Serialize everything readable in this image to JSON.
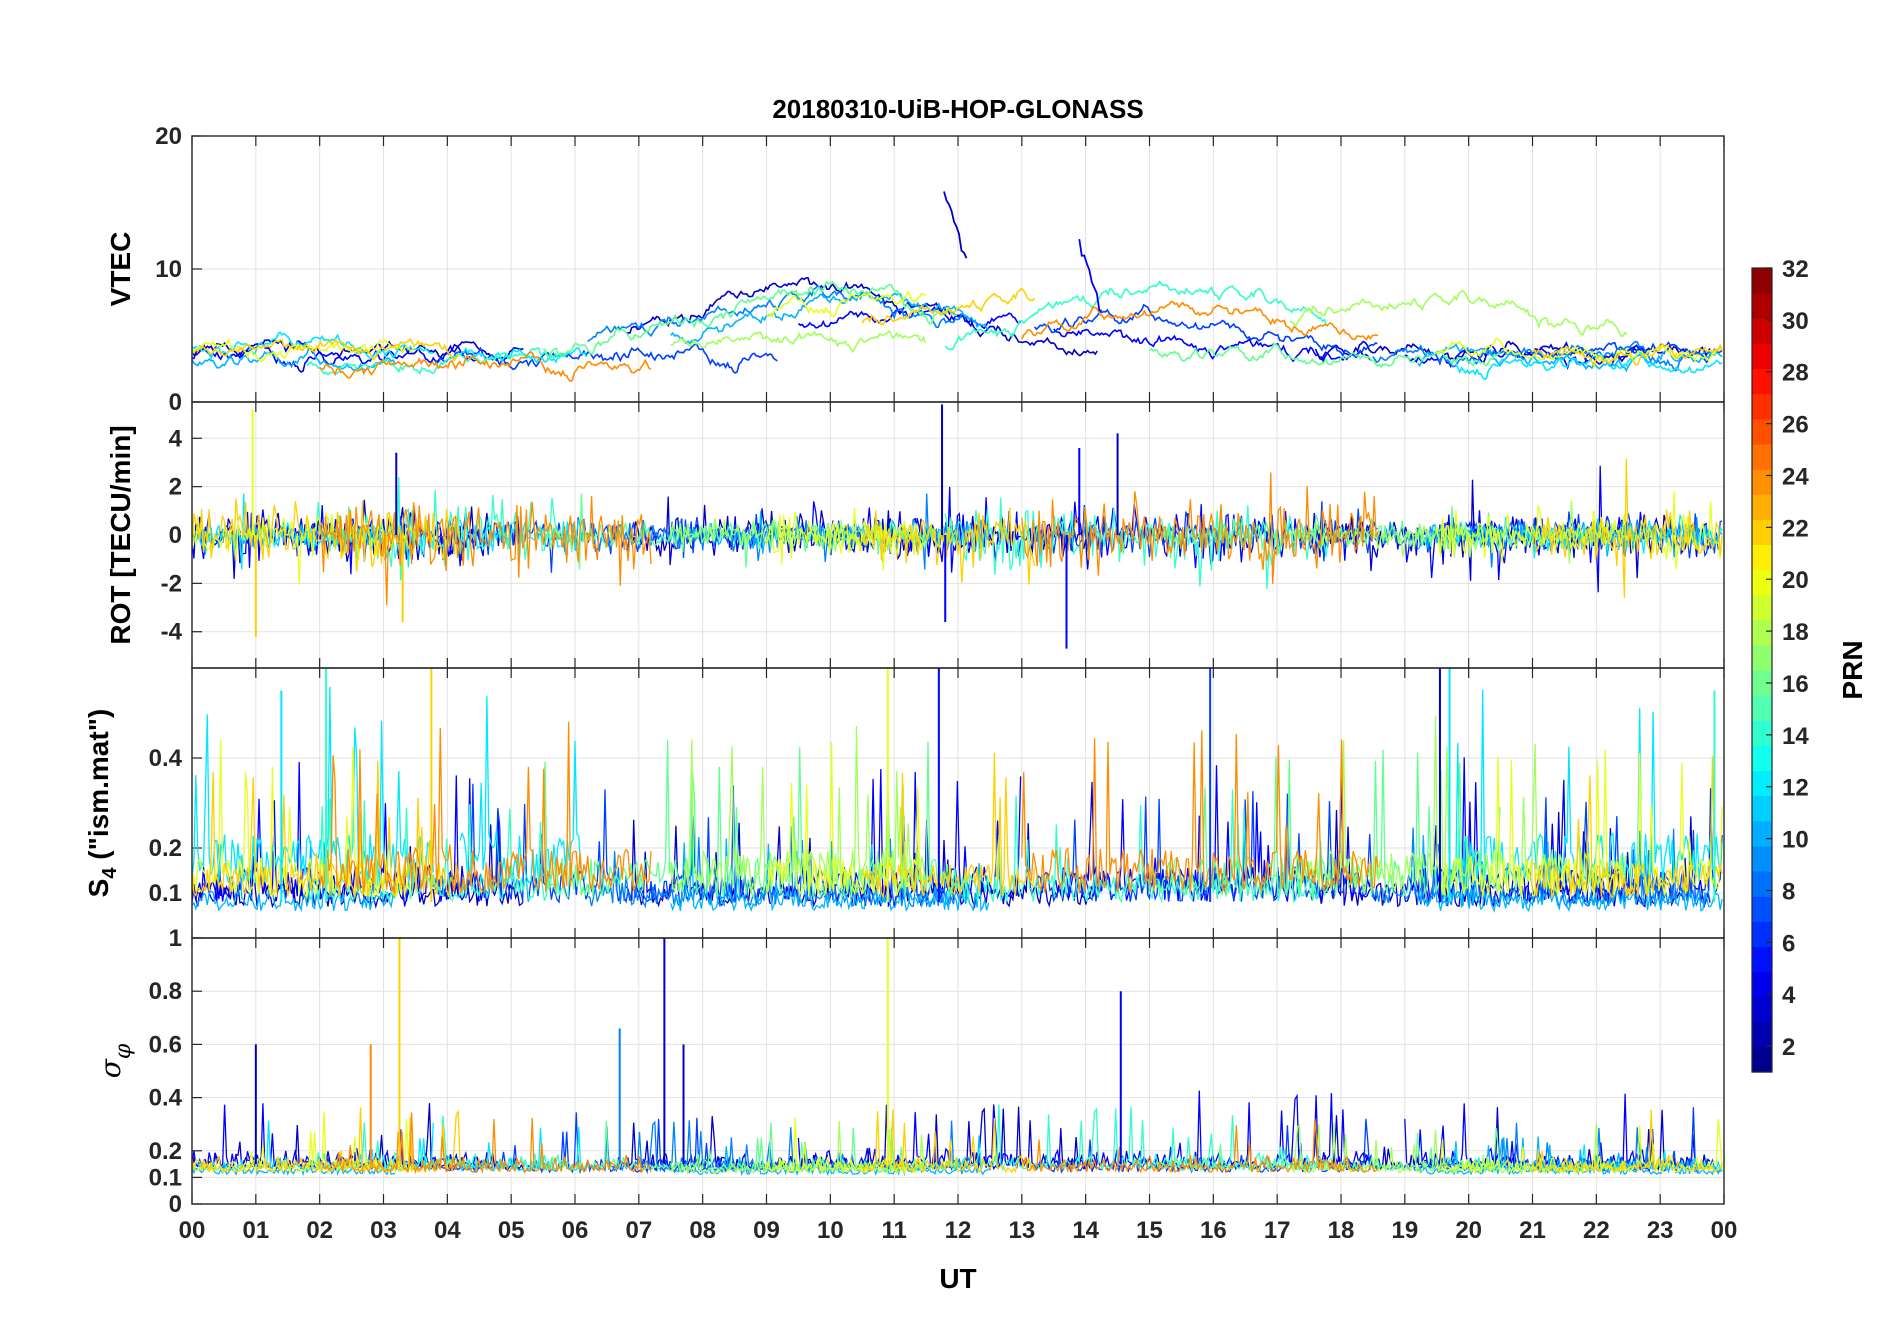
{
  "chart_data": {
    "type": "line",
    "title": "20180310-UiB-HOP-GLONASS",
    "xlabel": "UT",
    "x_ticks": [
      "00",
      "01",
      "02",
      "03",
      "04",
      "05",
      "06",
      "07",
      "08",
      "09",
      "10",
      "11",
      "12",
      "13",
      "14",
      "15",
      "16",
      "17",
      "18",
      "19",
      "20",
      "21",
      "22",
      "23",
      "00"
    ],
    "xlim_hours": [
      0,
      24
    ],
    "grid": true,
    "panels": [
      {
        "id": "vtec",
        "ylabel": "VTEC",
        "ylim": [
          0,
          20
        ],
        "yticks": [
          0,
          10,
          20
        ],
        "ytick_labels": [
          "0",
          "10",
          "20"
        ],
        "description": "Vertical TEC per satellite, mostly 2-9 TECU with peaks up to ~16 near 11.8 UT"
      },
      {
        "id": "rot",
        "ylabel": "ROT [TECU/min]",
        "ylim": [
          -5.5,
          5.5
        ],
        "yticks": [
          -4,
          -2,
          0,
          2,
          4
        ],
        "ytick_labels": [
          "-4",
          "-2",
          "0",
          "2",
          "4"
        ],
        "description": "Rate of TEC, fluctuations mostly within +/-2, spikes to +/-5"
      },
      {
        "id": "s4",
        "ylabel_main": "S",
        "ylabel_sub": "4",
        "ylabel_rest": " (\"ism.mat\")",
        "ylim": [
          0,
          0.6
        ],
        "yticks": [
          0.1,
          0.2,
          0.4
        ],
        "ytick_labels": [
          "0.1",
          "0.2",
          "0.4"
        ],
        "description": "Amplitude scintillation index, background ~0.05-0.1, bursts to 0.6"
      },
      {
        "id": "sigma",
        "ylabel_main": "σ",
        "ylabel_sub": "φ",
        "ylim": [
          0,
          1
        ],
        "yticks": [
          0,
          0.1,
          0.2,
          0.4,
          0.6,
          0.8,
          1
        ],
        "ytick_labels": [
          "0",
          "0.1",
          "0.2",
          "0.4",
          "0.6",
          "0.8",
          "1"
        ],
        "description": "Phase scintillation index, background ~0.1-0.2, spikes to 1"
      }
    ],
    "colorbar": {
      "label": "PRN",
      "range": [
        1,
        32
      ],
      "ticks": [
        2,
        4,
        6,
        8,
        10,
        12,
        14,
        16,
        18,
        20,
        22,
        24,
        26,
        28,
        30,
        32
      ],
      "tick_labels": [
        "2",
        "4",
        "6",
        "8",
        "10",
        "12",
        "14",
        "16",
        "18",
        "20",
        "22",
        "24",
        "26",
        "28",
        "30",
        "32"
      ],
      "colormap": "jet"
    },
    "series": [
      {
        "name": "PRN 2",
        "prn": 2,
        "color": "#0000c8",
        "intervals": [
          [
            0,
            5.2
          ],
          [
            6.8,
            14.2
          ],
          [
            17.6,
            23.8
          ]
        ],
        "vtec_base": 3.8,
        "vtec_peak": 8.3,
        "vtec_peak_at": 9.5,
        "rot_amp": 0.8,
        "s4_base": 0.07,
        "s4_amp": 0.12,
        "sigma_base": 0.16,
        "sigma_amp": 0.05
      },
      {
        "name": "PRN 4",
        "prn": 4,
        "color": "#0000ff",
        "intervals": [
          [
            0,
            4.5
          ],
          [
            9.5,
            13.0
          ],
          [
            13.5,
            18.5
          ],
          [
            19.0,
            22.8
          ]
        ],
        "vtec_base": 3.5,
        "vtec_peak": 7.0,
        "vtec_peak_at": 11.2,
        "rot_amp": 1.0,
        "s4_base": 0.08,
        "s4_amp": 0.18,
        "sigma_base": 0.17,
        "sigma_amp": 0.06
      },
      {
        "name": "PRN 6",
        "prn": 6,
        "color": "#0040ff",
        "intervals": [
          [
            3.8,
            9.2
          ],
          [
            13.2,
            18.6
          ],
          [
            21.0,
            24.0
          ]
        ],
        "vtec_base": 3.4,
        "vtec_peak": 6.5,
        "vtec_peak_at": 15.0,
        "rot_amp": 0.7,
        "s4_base": 0.08,
        "s4_amp": 0.15,
        "sigma_base": 0.15,
        "sigma_amp": 0.05
      },
      {
        "name": "PRN 8",
        "prn": 8,
        "color": "#0080ff",
        "intervals": [
          [
            6.2,
            12.2
          ],
          [
            18.5,
            23.8
          ]
        ],
        "vtec_base": 3.6,
        "vtec_peak": 8.0,
        "vtec_peak_at": 9.8,
        "rot_amp": 0.6,
        "s4_base": 0.07,
        "s4_amp": 0.1,
        "sigma_base": 0.15,
        "sigma_amp": 0.04
      },
      {
        "name": "PRN 10",
        "prn": 10,
        "color": "#00b4ff",
        "intervals": [
          [
            0,
            3.2
          ],
          [
            7.5,
            12.5
          ],
          [
            19.2,
            24.0
          ]
        ],
        "vtec_base": 3.2,
        "vtec_peak": 7.5,
        "vtec_peak_at": 10.2,
        "rot_amp": 0.5,
        "s4_base": 0.06,
        "s4_amp": 0.1,
        "sigma_base": 0.13,
        "sigma_amp": 0.03
      },
      {
        "name": "PRN 12",
        "prn": 12,
        "color": "#00e8ff",
        "intervals": [
          [
            0,
            3.8
          ],
          [
            4.2,
            6.2
          ],
          [
            19.8,
            24.0
          ]
        ],
        "vtec_base": 3.0,
        "vtec_peak": 4.5,
        "vtec_peak_at": 1.5,
        "rot_amp": 0.6,
        "s4_base": 0.12,
        "s4_amp": 0.25,
        "sigma_base": 0.15,
        "sigma_amp": 0.04
      },
      {
        "name": "PRN 14",
        "prn": 14,
        "color": "#30ffc8",
        "intervals": [
          [
            1.8,
            5.8
          ],
          [
            11.8,
            17.8
          ]
        ],
        "vtec_base": 3.0,
        "vtec_peak": 8.8,
        "vtec_peak_at": 15.5,
        "rot_amp": 1.2,
        "s4_base": 0.08,
        "s4_amp": 0.14,
        "sigma_base": 0.16,
        "sigma_amp": 0.05
      },
      {
        "name": "PRN 16",
        "prn": 16,
        "color": "#60ff90",
        "intervals": [
          [
            5.5,
            12.0
          ],
          [
            15.0,
            20.5
          ]
        ],
        "vtec_base": 3.6,
        "vtec_peak": 8.4,
        "vtec_peak_at": 10.0,
        "rot_amp": 0.6,
        "s4_base": 0.09,
        "s4_amp": 0.2,
        "sigma_base": 0.15,
        "sigma_amp": 0.04
      },
      {
        "name": "PRN 18",
        "prn": 18,
        "color": "#a0ff5a",
        "intervals": [
          [
            7.5,
            11.5
          ],
          [
            17.2,
            22.5
          ]
        ],
        "vtec_base": 4.2,
        "vtec_peak": 7.8,
        "vtec_peak_at": 19.3,
        "rot_amp": 0.5,
        "s4_base": 0.1,
        "s4_amp": 0.22,
        "sigma_base": 0.14,
        "sigma_amp": 0.04
      },
      {
        "name": "PRN 20",
        "prn": 20,
        "color": "#e6ff1e",
        "intervals": [
          [
            0,
            3.5
          ],
          [
            9.0,
            11.5
          ],
          [
            19.5,
            24.0
          ]
        ],
        "vtec_base": 4.0,
        "vtec_peak": 8.0,
        "vtec_peak_at": 10.9,
        "rot_amp": 0.9,
        "s4_base": 0.09,
        "s4_amp": 0.2,
        "sigma_base": 0.15,
        "sigma_amp": 0.05
      },
      {
        "name": "PRN 22",
        "prn": 22,
        "color": "#ffd000",
        "intervals": [
          [
            0,
            4.2
          ],
          [
            10.5,
            13.2
          ],
          [
            21.0,
            24.0
          ]
        ],
        "vtec_base": 3.6,
        "vtec_peak": 7.8,
        "vtec_peak_at": 12.8,
        "rot_amp": 1.1,
        "s4_base": 0.09,
        "s4_amp": 0.18,
        "sigma_base": 0.15,
        "sigma_amp": 0.05
      },
      {
        "name": "PRN 24",
        "prn": 24,
        "color": "#ff8c00",
        "intervals": [
          [
            2.0,
            7.2
          ],
          [
            13.0,
            18.6
          ]
        ],
        "vtec_base": 2.8,
        "vtec_peak": 7.5,
        "vtec_peak_at": 15.6,
        "rot_amp": 1.3,
        "s4_base": 0.1,
        "s4_amp": 0.22,
        "sigma_base": 0.15,
        "sigma_amp": 0.05
      }
    ],
    "spikes": {
      "vtec": [
        {
          "series_prn": 2,
          "t": 11.78,
          "v": 16.0
        },
        {
          "series_prn": 4,
          "t": 13.9,
          "v": 12.0
        }
      ],
      "rot": [
        {
          "t": 0.95,
          "v": 5.2,
          "prn": 20
        },
        {
          "t": 1.0,
          "v": -4.2,
          "prn": 22
        },
        {
          "t": 11.75,
          "v": 5.4,
          "prn": 2
        },
        {
          "t": 11.8,
          "v": -3.6,
          "prn": 4
        },
        {
          "t": 13.7,
          "v": -4.7,
          "prn": 4
        },
        {
          "t": 14.5,
          "v": 4.2,
          "prn": 2
        },
        {
          "t": 13.9,
          "v": 3.6,
          "prn": 4
        },
        {
          "t": 3.2,
          "v": 3.4,
          "prn": 2
        },
        {
          "t": 3.3,
          "v": -3.6,
          "prn": 22
        }
      ],
      "s4": [
        {
          "t": 3.75,
          "v": 0.6,
          "prn": 22
        },
        {
          "t": 10.9,
          "v": 0.6,
          "prn": 20
        },
        {
          "t": 11.7,
          "v": 0.6,
          "prn": 4
        },
        {
          "t": 15.95,
          "v": 0.6,
          "prn": 6
        },
        {
          "t": 19.55,
          "v": 0.6,
          "prn": 2
        },
        {
          "t": 19.7,
          "v": 0.6,
          "prn": 12
        },
        {
          "t": 2.1,
          "v": 0.6,
          "prn": 14
        },
        {
          "t": 1.4,
          "v": 0.55,
          "prn": 12
        },
        {
          "t": 23.85,
          "v": 0.55,
          "prn": 14
        }
      ],
      "sigma": [
        {
          "t": 3.25,
          "v": 1.0,
          "prn": 22
        },
        {
          "t": 7.4,
          "v": 1.0,
          "prn": 2
        },
        {
          "t": 10.9,
          "v": 1.0,
          "prn": 20
        },
        {
          "t": 14.55,
          "v": 0.8,
          "prn": 4
        },
        {
          "t": 2.8,
          "v": 0.6,
          "prn": 24
        },
        {
          "t": 6.7,
          "v": 0.66,
          "prn": 8
        },
        {
          "t": 1.0,
          "v": 0.6,
          "prn": 2
        },
        {
          "t": 7.7,
          "v": 0.6,
          "prn": 2
        }
      ]
    }
  }
}
